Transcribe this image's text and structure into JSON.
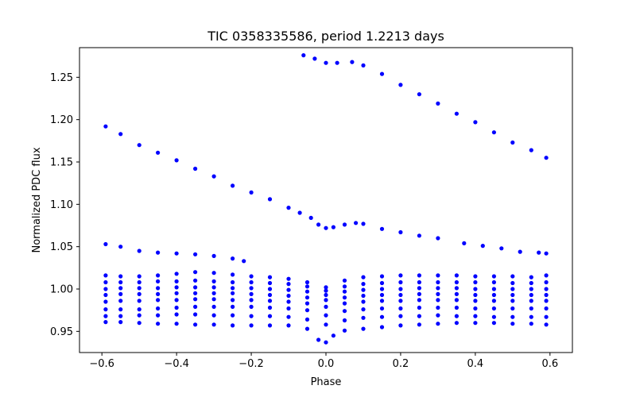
{
  "chart_data": {
    "type": "scatter",
    "title": "TIC 0358335586, period 1.2213 days",
    "xlabel": "Phase",
    "ylabel": "Normalized PDC flux",
    "xlim": [
      -0.66,
      0.66
    ],
    "ylim": [
      0.925,
      1.285
    ],
    "xticks": [
      -0.6,
      -0.4,
      -0.2,
      0.0,
      0.2,
      0.4,
      0.6
    ],
    "xtick_labels": [
      "−0.6",
      "−0.4",
      "−0.2",
      "0.0",
      "0.2",
      "0.4",
      "0.6"
    ],
    "yticks": [
      0.95,
      1.0,
      1.05,
      1.1,
      1.15,
      1.2,
      1.25
    ],
    "ytick_labels": [
      "0.95",
      "1.00",
      "1.05",
      "1.10",
      "1.15",
      "1.20",
      "1.25"
    ],
    "grid": false,
    "marker_color": "#0000ff",
    "series": [
      {
        "points": [
          [
            -0.59,
            1.192
          ],
          [
            -0.55,
            1.183
          ],
          [
            -0.5,
            1.17
          ],
          [
            -0.45,
            1.161
          ],
          [
            -0.4,
            1.152
          ],
          [
            -0.35,
            1.142
          ],
          [
            -0.3,
            1.133
          ],
          [
            -0.25,
            1.122
          ],
          [
            -0.2,
            1.114
          ],
          [
            -0.15,
            1.106
          ],
          [
            -0.1,
            1.096
          ],
          [
            -0.07,
            1.09
          ],
          [
            -0.04,
            1.084
          ],
          [
            -0.02,
            1.076
          ],
          [
            0.0,
            1.072
          ],
          [
            0.02,
            1.073
          ],
          [
            0.05,
            1.076
          ],
          [
            0.08,
            1.078
          ],
          [
            0.1,
            1.077
          ],
          [
            0.15,
            1.071
          ],
          [
            0.2,
            1.067
          ],
          [
            0.25,
            1.063
          ],
          [
            0.3,
            1.06
          ]
        ]
      },
      {
        "points": [
          [
            -0.06,
            1.276
          ],
          [
            -0.03,
            1.272
          ],
          [
            0.0,
            1.267
          ],
          [
            0.03,
            1.267
          ],
          [
            0.07,
            1.268
          ],
          [
            0.1,
            1.264
          ],
          [
            0.15,
            1.254
          ],
          [
            0.2,
            1.241
          ],
          [
            0.25,
            1.23
          ],
          [
            0.3,
            1.219
          ],
          [
            0.35,
            1.207
          ],
          [
            0.4,
            1.197
          ],
          [
            0.45,
            1.185
          ],
          [
            0.5,
            1.173
          ],
          [
            0.55,
            1.164
          ],
          [
            0.59,
            1.155
          ]
        ]
      },
      {
        "points": [
          [
            -0.59,
            1.053
          ],
          [
            -0.55,
            1.05
          ],
          [
            -0.5,
            1.045
          ],
          [
            -0.45,
            1.043
          ],
          [
            -0.4,
            1.042
          ],
          [
            -0.35,
            1.041
          ],
          [
            -0.3,
            1.039
          ],
          [
            -0.25,
            1.036
          ],
          [
            -0.22,
            1.033
          ],
          [
            0.37,
            1.054
          ],
          [
            0.42,
            1.051
          ],
          [
            0.47,
            1.048
          ],
          [
            0.52,
            1.044
          ],
          [
            0.57,
            1.043
          ],
          [
            0.59,
            1.042
          ]
        ]
      },
      {
        "points": [
          [
            -0.59,
            1.016
          ],
          [
            -0.55,
            1.015
          ],
          [
            -0.5,
            1.015
          ],
          [
            -0.45,
            1.016
          ],
          [
            -0.4,
            1.018
          ],
          [
            -0.35,
            1.02
          ],
          [
            -0.3,
            1.019
          ],
          [
            -0.25,
            1.017
          ],
          [
            -0.2,
            1.015
          ],
          [
            -0.15,
            1.014
          ],
          [
            -0.1,
            1.012
          ],
          [
            -0.05,
            1.008
          ],
          [
            0.0,
            1.002
          ],
          [
            0.05,
            1.01
          ],
          [
            0.1,
            1.014
          ],
          [
            0.15,
            1.015
          ],
          [
            0.2,
            1.016
          ],
          [
            0.25,
            1.016
          ],
          [
            0.3,
            1.016
          ],
          [
            0.35,
            1.016
          ],
          [
            0.4,
            1.015
          ],
          [
            0.45,
            1.015
          ],
          [
            0.5,
            1.015
          ],
          [
            0.55,
            1.014
          ],
          [
            0.59,
            1.016
          ]
        ]
      },
      {
        "points": [
          [
            -0.59,
            1.008
          ],
          [
            -0.55,
            1.008
          ],
          [
            -0.5,
            1.008
          ],
          [
            -0.45,
            1.009
          ],
          [
            -0.4,
            1.009
          ],
          [
            -0.35,
            1.01
          ],
          [
            -0.3,
            1.009
          ],
          [
            -0.25,
            1.008
          ],
          [
            -0.2,
            1.008
          ],
          [
            -0.15,
            1.007
          ],
          [
            -0.1,
            1.006
          ],
          [
            -0.05,
            1.003
          ],
          [
            0.0,
            0.998
          ],
          [
            0.05,
            1.003
          ],
          [
            0.1,
            1.006
          ],
          [
            0.15,
            1.007
          ],
          [
            0.2,
            1.008
          ],
          [
            0.25,
            1.008
          ],
          [
            0.3,
            1.008
          ],
          [
            0.35,
            1.008
          ],
          [
            0.4,
            1.008
          ],
          [
            0.45,
            1.008
          ],
          [
            0.5,
            1.007
          ],
          [
            0.55,
            1.007
          ],
          [
            0.59,
            1.008
          ]
        ]
      },
      {
        "points": [
          [
            -0.59,
            1.0
          ],
          [
            -0.55,
            1.001
          ],
          [
            -0.5,
            1.001
          ],
          [
            -0.45,
            1.001
          ],
          [
            -0.4,
            1.002
          ],
          [
            -0.35,
            1.002
          ],
          [
            -0.3,
            1.002
          ],
          [
            -0.25,
            1.001
          ],
          [
            -0.2,
            1.001
          ],
          [
            -0.15,
            1.0
          ],
          [
            -0.1,
            0.999
          ],
          [
            -0.05,
            0.997
          ],
          [
            0.0,
            0.993
          ],
          [
            0.05,
            0.997
          ],
          [
            0.1,
            0.999
          ],
          [
            0.15,
            1.0
          ],
          [
            0.2,
            1.0
          ],
          [
            0.25,
            1.001
          ],
          [
            0.3,
            1.001
          ],
          [
            0.35,
            1.001
          ],
          [
            0.4,
            1.0
          ],
          [
            0.45,
            1.0
          ],
          [
            0.5,
            1.0
          ],
          [
            0.55,
            1.0
          ],
          [
            0.59,
            1.0
          ]
        ]
      },
      {
        "points": [
          [
            -0.59,
            0.993
          ],
          [
            -0.55,
            0.994
          ],
          [
            -0.5,
            0.994
          ],
          [
            -0.45,
            0.994
          ],
          [
            -0.4,
            0.995
          ],
          [
            -0.35,
            0.995
          ],
          [
            -0.3,
            0.995
          ],
          [
            -0.25,
            0.995
          ],
          [
            -0.2,
            0.994
          ],
          [
            -0.15,
            0.993
          ],
          [
            -0.1,
            0.992
          ],
          [
            -0.05,
            0.99
          ],
          [
            0.0,
            0.987
          ],
          [
            0.05,
            0.99
          ],
          [
            0.1,
            0.992
          ],
          [
            0.15,
            0.993
          ],
          [
            0.2,
            0.993
          ],
          [
            0.25,
            0.994
          ],
          [
            0.3,
            0.994
          ],
          [
            0.35,
            0.994
          ],
          [
            0.4,
            0.993
          ],
          [
            0.45,
            0.993
          ],
          [
            0.5,
            0.993
          ],
          [
            0.55,
            0.993
          ],
          [
            0.59,
            0.993
          ]
        ]
      },
      {
        "points": [
          [
            -0.59,
            0.985
          ],
          [
            -0.55,
            0.986
          ],
          [
            -0.5,
            0.986
          ],
          [
            -0.45,
            0.987
          ],
          [
            -0.4,
            0.987
          ],
          [
            -0.35,
            0.988
          ],
          [
            -0.3,
            0.988
          ],
          [
            -0.25,
            0.987
          ],
          [
            -0.2,
            0.987
          ],
          [
            -0.15,
            0.986
          ],
          [
            -0.1,
            0.985
          ],
          [
            -0.05,
            0.983
          ],
          [
            0.0,
            0.979
          ],
          [
            0.05,
            0.983
          ],
          [
            0.1,
            0.985
          ],
          [
            0.15,
            0.986
          ],
          [
            0.2,
            0.986
          ],
          [
            0.25,
            0.987
          ],
          [
            0.3,
            0.987
          ],
          [
            0.35,
            0.987
          ],
          [
            0.4,
            0.986
          ],
          [
            0.45,
            0.986
          ],
          [
            0.5,
            0.986
          ],
          [
            0.55,
            0.986
          ],
          [
            0.59,
            0.986
          ]
        ]
      },
      {
        "points": [
          [
            -0.59,
            0.976
          ],
          [
            -0.55,
            0.976
          ],
          [
            -0.5,
            0.976
          ],
          [
            -0.45,
            0.977
          ],
          [
            -0.4,
            0.978
          ],
          [
            -0.35,
            0.979
          ],
          [
            -0.3,
            0.979
          ],
          [
            -0.25,
            0.979
          ],
          [
            -0.2,
            0.979
          ],
          [
            -0.15,
            0.978
          ],
          [
            -0.1,
            0.977
          ],
          [
            -0.05,
            0.975
          ],
          [
            0.0,
            0.969
          ],
          [
            0.05,
            0.974
          ],
          [
            0.1,
            0.976
          ],
          [
            0.15,
            0.977
          ],
          [
            0.2,
            0.977
          ],
          [
            0.25,
            0.978
          ],
          [
            0.3,
            0.978
          ],
          [
            0.35,
            0.978
          ],
          [
            0.4,
            0.977
          ],
          [
            0.45,
            0.977
          ],
          [
            0.5,
            0.977
          ],
          [
            0.55,
            0.977
          ],
          [
            0.59,
            0.977
          ]
        ]
      },
      {
        "points": [
          [
            -0.59,
            0.968
          ],
          [
            -0.55,
            0.968
          ],
          [
            -0.5,
            0.969
          ],
          [
            -0.45,
            0.969
          ],
          [
            -0.4,
            0.97
          ],
          [
            -0.35,
            0.97
          ],
          [
            -0.3,
            0.969
          ],
          [
            -0.25,
            0.969
          ],
          [
            -0.2,
            0.968
          ],
          [
            -0.15,
            0.968
          ],
          [
            -0.1,
            0.967
          ],
          [
            -0.05,
            0.964
          ],
          [
            0.0,
            0.958
          ],
          [
            0.05,
            0.963
          ],
          [
            0.1,
            0.966
          ],
          [
            0.15,
            0.967
          ],
          [
            0.2,
            0.968
          ],
          [
            0.25,
            0.968
          ],
          [
            0.3,
            0.969
          ],
          [
            0.35,
            0.968
          ],
          [
            0.4,
            0.968
          ],
          [
            0.45,
            0.967
          ],
          [
            0.5,
            0.967
          ],
          [
            0.55,
            0.967
          ],
          [
            0.59,
            0.967
          ]
        ]
      },
      {
        "points": [
          [
            -0.59,
            0.961
          ],
          [
            -0.55,
            0.961
          ],
          [
            -0.5,
            0.96
          ],
          [
            -0.45,
            0.959
          ],
          [
            -0.4,
            0.959
          ],
          [
            -0.35,
            0.958
          ],
          [
            -0.3,
            0.958
          ],
          [
            -0.25,
            0.957
          ],
          [
            -0.2,
            0.957
          ],
          [
            -0.15,
            0.957
          ],
          [
            -0.1,
            0.957
          ],
          [
            -0.05,
            0.953
          ],
          [
            -0.02,
            0.94
          ],
          [
            0.0,
            0.937
          ],
          [
            0.02,
            0.945
          ],
          [
            0.05,
            0.951
          ],
          [
            0.1,
            0.953
          ],
          [
            0.15,
            0.955
          ],
          [
            0.2,
            0.957
          ],
          [
            0.25,
            0.958
          ],
          [
            0.3,
            0.959
          ],
          [
            0.35,
            0.96
          ],
          [
            0.4,
            0.96
          ],
          [
            0.45,
            0.96
          ],
          [
            0.5,
            0.959
          ],
          [
            0.55,
            0.959
          ],
          [
            0.59,
            0.958
          ]
        ]
      }
    ]
  }
}
